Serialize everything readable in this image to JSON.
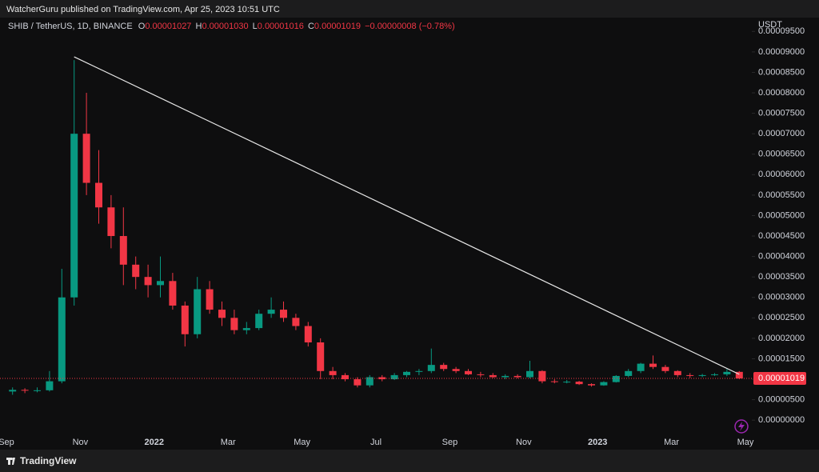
{
  "header": "WatcherGuru published on TradingView.com, Apr 25, 2023 10:51 UTC",
  "footer": "TradingView",
  "chart_data": {
    "type": "candlestick",
    "legend": {
      "symbol": "SHIB / TetherUS, 1D, BINANCE",
      "o_key": "O",
      "o": "0.00001027",
      "h_key": "H",
      "h": "0.00001030",
      "l_key": "L",
      "l": "0.00001016",
      "c_key": "C",
      "c": "0.00001019",
      "change": "−0.00000008 (−0.78%)"
    },
    "y_unit": "USDT",
    "categories": [
      "Sep",
      null,
      null,
      null,
      null,
      null,
      "Nov",
      null,
      null,
      null,
      null,
      null,
      "2022",
      null,
      null,
      null,
      null,
      null,
      "Mar",
      null,
      null,
      null,
      null,
      null,
      "May",
      null,
      null,
      null,
      null,
      null,
      "Jul",
      null,
      null,
      null,
      null,
      null,
      "Sep",
      null,
      null,
      null,
      null,
      null,
      "Nov",
      null,
      null,
      null,
      null,
      null,
      "2023",
      null,
      null,
      null,
      null,
      null,
      "Mar",
      null,
      null,
      null,
      null,
      null,
      "May"
    ],
    "open": [
      7e-06,
      7.4e-06,
      7.2e-06,
      7.3e-06,
      9.5e-06,
      3e-05,
      7e-05,
      5.8e-05,
      5.2e-05,
      4.5e-05,
      3.8e-05,
      3.5e-05,
      3.3e-05,
      3.4e-05,
      2.8e-05,
      2.1e-05,
      3.2e-05,
      2.7e-05,
      2.5e-05,
      2.2e-05,
      2.25e-05,
      2.6e-05,
      2.7e-05,
      2.5e-05,
      2.3e-05,
      1.9e-05,
      1.2e-05,
      1.1e-05,
      1e-05,
      8.5e-06,
      1.05e-05,
      1e-05,
      1.1e-05,
      1.18e-05,
      1.2e-05,
      1.35e-05,
      1.25e-05,
      1.2e-05,
      1.12e-05,
      1.1e-05,
      1.05e-05,
      1.08e-05,
      1.05e-05,
      1.2e-05,
      9.5e-06,
      9.3e-06,
      9.4e-06,
      8.8e-06,
      8.5e-06,
      9.3e-06,
      1.08e-05,
      1.2e-05,
      1.38e-05,
      1.3e-05,
      1.2e-05,
      1.1e-05,
      1.08e-05,
      1.1e-05,
      1.12e-05,
      1.18e-05,
      null
    ],
    "high": [
      8e-06,
      7.8e-06,
      8e-06,
      1.2e-05,
      3.7e-05,
      8.8e-05,
      8e-05,
      6.6e-05,
      5.5e-05,
      5.2e-05,
      4e-05,
      3.8e-05,
      4e-05,
      3.6e-05,
      2.9e-05,
      3.5e-05,
      3.4e-05,
      2.9e-05,
      2.7e-05,
      2.4e-05,
      2.7e-05,
      3e-05,
      2.9e-05,
      2.6e-05,
      2.4e-05,
      2e-05,
      1.3e-05,
      1.15e-05,
      1.05e-05,
      1.1e-05,
      1.1e-05,
      1.15e-05,
      1.2e-05,
      1.25e-05,
      1.75e-05,
      1.4e-05,
      1.3e-05,
      1.25e-05,
      1.18e-05,
      1.15e-05,
      1.12e-05,
      1.12e-05,
      1.45e-05,
      1.22e-05,
      1e-05,
      9.8e-06,
      9.6e-06,
      9e-06,
      9.5e-06,
      1.1e-05,
      1.25e-05,
      1.4e-05,
      1.58e-05,
      1.35e-05,
      1.22e-05,
      1.15e-05,
      1.13e-05,
      1.15e-05,
      1.25e-05,
      1.2e-05,
      null
    ],
    "low": [
      6.2e-06,
      6.6e-06,
      6.8e-06,
      7e-06,
      9e-06,
      2.8e-05,
      5.5e-05,
      4.8e-05,
      4.2e-05,
      3.3e-05,
      3.2e-05,
      3e-05,
      3e-05,
      2.7e-05,
      1.8e-05,
      2e-05,
      2.6e-05,
      2.3e-05,
      2.1e-05,
      2.1e-05,
      2.2e-05,
      2.5e-05,
      2.4e-05,
      2.2e-05,
      1.8e-05,
      1e-05,
      1e-05,
      9.5e-06,
      8e-06,
      8e-06,
      9.5e-06,
      9.8e-06,
      1.05e-05,
      1.1e-05,
      1.15e-05,
      1.2e-05,
      1.15e-05,
      1.1e-05,
      1.05e-05,
      1.03e-05,
      1e-05,
      1.02e-05,
      1.02e-05,
      9e-06,
      9e-06,
      9e-06,
      8.6e-06,
      8.2e-06,
      8.4e-06,
      9.2e-06,
      1.05e-05,
      1.15e-05,
      1.25e-05,
      1.15e-05,
      1.05e-05,
      1.03e-05,
      1.05e-05,
      1.08e-05,
      1.08e-05,
      1e-05,
      null
    ],
    "close": [
      7.4e-06,
      7.2e-06,
      7.3e-06,
      9.5e-06,
      3e-05,
      7e-05,
      5.8e-05,
      5.2e-05,
      4.5e-05,
      3.8e-05,
      3.5e-05,
      3.3e-05,
      3.4e-05,
      2.8e-05,
      2.1e-05,
      3.2e-05,
      2.7e-05,
      2.5e-05,
      2.2e-05,
      2.25e-05,
      2.6e-05,
      2.7e-05,
      2.5e-05,
      2.3e-05,
      1.9e-05,
      1.2e-05,
      1.1e-05,
      1e-05,
      8.5e-06,
      1.05e-05,
      1e-05,
      1.1e-05,
      1.18e-05,
      1.2e-05,
      1.35e-05,
      1.25e-05,
      1.2e-05,
      1.12e-05,
      1.1e-05,
      1.05e-05,
      1.08e-05,
      1.05e-05,
      1.2e-05,
      9.5e-06,
      9.3e-06,
      9.4e-06,
      8.8e-06,
      8.5e-06,
      9.3e-06,
      1.08e-05,
      1.2e-05,
      1.38e-05,
      1.3e-05,
      1.2e-05,
      1.1e-05,
      1.08e-05,
      1.1e-05,
      1.12e-05,
      1.18e-05,
      1.019e-05,
      null
    ],
    "last_value_label": "0.00001019",
    "up_color": "#089981",
    "down_color": "#f23645",
    "trend_line": [
      8.88e-05,
      1.12e-05
    ],
    "ylim": [
      -2.9e-06,
      9.78e-05
    ],
    "yticks": [
      {
        "value": 0,
        "label": "0.00000000"
      },
      {
        "value": 5e-06,
        "label": "0.00000500"
      },
      {
        "value": 1e-05,
        "label": "0.00001000"
      },
      {
        "value": 1.5e-05,
        "label": "0.00001500"
      },
      {
        "value": 2e-05,
        "label": "0.00002000"
      },
      {
        "value": 2.5e-05,
        "label": "0.00002500"
      },
      {
        "value": 3e-05,
        "label": "0.00003000"
      },
      {
        "value": 3.5e-05,
        "label": "0.00003500"
      },
      {
        "value": 4e-05,
        "label": "0.00004000"
      },
      {
        "value": 4.5e-05,
        "label": "0.00004500"
      },
      {
        "value": 5e-05,
        "label": "0.00005000"
      },
      {
        "value": 5.5e-05,
        "label": "0.00005500"
      },
      {
        "value": 6e-05,
        "label": "0.00006000"
      },
      {
        "value": 6.5e-05,
        "label": "0.00006500"
      },
      {
        "value": 7e-05,
        "label": "0.00007000"
      },
      {
        "value": 7.5e-05,
        "label": "0.00007500"
      },
      {
        "value": 8e-05,
        "label": "0.00008000"
      },
      {
        "value": 8.5e-05,
        "label": "0.00008500"
      },
      {
        "value": 9e-05,
        "label": "0.00009000"
      },
      {
        "value": 9.5e-05,
        "label": "0.00009500"
      }
    ],
    "grid": false
  }
}
